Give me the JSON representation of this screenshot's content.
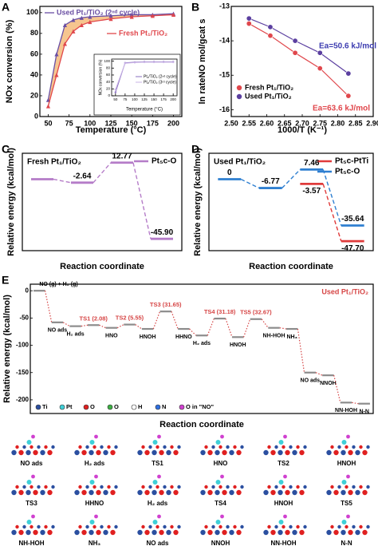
{
  "chart_data": [
    {
      "type": "line",
      "panel": "A",
      "xlabel": "Temperature (°C)",
      "ylabel": "NOx conversion (%)",
      "xlim": [
        40,
        210
      ],
      "xticks": [
        50,
        75,
        100,
        125,
        150,
        175,
        200
      ],
      "ylim": [
        0,
        106
      ],
      "yticks": [
        0,
        20,
        40,
        60,
        80,
        100
      ],
      "x": [
        50,
        60,
        70,
        80,
        90,
        100,
        125,
        150,
        175,
        200
      ],
      "fill_color": "#f6c58f",
      "series": [
        {
          "name": "Used Pt₁/TiO₂ (2ⁿᵈ cycle)",
          "color": "#6a4fa3",
          "values": [
            16,
            60,
            88,
            93,
            95,
            96,
            97,
            98,
            98,
            99
          ]
        },
        {
          "name": "Fresh Pt₁/TiO₂",
          "color": "#e0474c",
          "values": [
            10,
            40,
            70,
            82,
            88,
            91,
            94,
            96,
            97,
            98
          ]
        }
      ],
      "inset": {
        "xlabel": "Temperature (°C)",
        "ylabel": "NOx conversion (%)",
        "xlim": [
          40,
          210
        ],
        "xticks": [
          50,
          75,
          100,
          125,
          150,
          175,
          200
        ],
        "ylim": [
          0,
          106
        ],
        "yticks": [
          0,
          20,
          40,
          60,
          80,
          100
        ],
        "x": [
          50,
          75,
          100,
          125,
          150,
          175,
          200
        ],
        "series": [
          {
            "name": "Pt₁/TiO₂ (2ⁿᵈ cycle)",
            "color": "#8a6fc0",
            "values": [
              10,
              95,
              97,
              98,
              98,
              98,
              98
            ]
          },
          {
            "name": "Pt₁/TiO₂ (3ʳᵈ cycle)",
            "color": "#c9b3e6",
            "values": [
              18,
              94,
              96,
              97,
              97,
              97,
              97
            ]
          }
        ]
      }
    },
    {
      "type": "scatter",
      "panel": "B",
      "xlabel": "1000/T (K⁻¹)",
      "ylabel": "ln rateNO mol/gcat s",
      "xlim": [
        2.5,
        2.9
      ],
      "xticks": [
        {
          "value": 2.5,
          "label": "2.50"
        },
        {
          "value": 2.55,
          "label": "2.55"
        },
        {
          "value": 2.6,
          "label": "2.60"
        },
        {
          "value": 2.65,
          "label": "2.65"
        },
        {
          "value": 2.7,
          "label": "2.70"
        },
        {
          "value": 2.75,
          "label": "2.75"
        },
        {
          "value": 2.8,
          "label": "2.80"
        },
        {
          "value": 2.85,
          "label": "2.85"
        },
        {
          "value": 2.9,
          "label": "2.90"
        }
      ],
      "ylim": [
        -16.2,
        -13.0
      ],
      "yticks": [
        -16,
        -15,
        -14,
        -13
      ],
      "series": [
        {
          "name": "Fresh Pt₁/TiO₂",
          "color": "#e0474c",
          "x": [
            2.55,
            2.61,
            2.68,
            2.75,
            2.83
          ],
          "values": [
            -13.5,
            -13.85,
            -14.35,
            -14.8,
            -15.6
          ]
        },
        {
          "name": "Used Pt₁/TiO₂",
          "color": "#5b3fa0",
          "x": [
            2.55,
            2.61,
            2.68,
            2.75,
            2.83
          ],
          "values": [
            -13.35,
            -13.6,
            -14.0,
            -14.35,
            -14.95
          ]
        }
      ],
      "annotations": [
        {
          "text": "Ea=50.6 kJ/mol",
          "color": "#3c3cb0"
        },
        {
          "text": "Ea=63.6 kJ/mol",
          "color": "#e0474c"
        }
      ]
    },
    {
      "type": "energy",
      "panel": "C",
      "title": "Fresh Pt₁/TiO₂",
      "xlabel": "Reaction coordinate",
      "ylabel": "Relative energy (kcal/mol)",
      "ylim": [
        -55,
        20
      ],
      "series": [
        {
          "name": "Pt₅c-O",
          "color": "#b57cc8",
          "values": [
            0,
            -2.64,
            12.77,
            -45.9
          ],
          "value_labels": [
            null,
            "-2.64",
            "12.77",
            "-45.90"
          ]
        }
      ]
    },
    {
      "type": "energy",
      "panel": "D",
      "title": "Used Pt₁/TiO₂",
      "xlabel": "Reaction coordinate",
      "ylabel": "Relative energy (kcal/mol)",
      "ylim": [
        -55,
        20
      ],
      "series": [
        {
          "name": "Pt₅c-PtTi",
          "color": "#e03b3b",
          "values": [
            null,
            null,
            -3.57,
            -47.7
          ],
          "value_labels": [
            null,
            null,
            "-3.57",
            "-47.70"
          ]
        },
        {
          "name": "Pt₅c-O",
          "color": "#2e7fd1",
          "values": [
            0,
            -6.77,
            7.46,
            -35.64
          ],
          "value_labels": [
            "0",
            "-6.77",
            "7.46",
            "-35.64"
          ]
        }
      ]
    },
    {
      "type": "energy",
      "panel": "E",
      "title": "Used Pt₁/TiO₂",
      "xlabel": "Reaction coordinate",
      "ylabel": "Relative energy (kcal/mol)",
      "ylim": [
        -225,
        12
      ],
      "yticks": [
        -200,
        -150,
        -100,
        -50,
        0
      ],
      "series": [
        {
          "color": "#d64545",
          "level_color": "#8c8c8c",
          "values": [
            0,
            -58,
            -65,
            -63,
            -68,
            -62,
            -70,
            -38,
            -70,
            -82,
            -51,
            -85,
            -52,
            -68,
            -70,
            -150,
            -155,
            -205,
            -207
          ]
        }
      ],
      "categories": [
        "NO (g) + H₂ (g)",
        "NO ads",
        "H₂ ads",
        null,
        "HNO",
        null,
        "HNOH",
        null,
        "HHNO",
        "H₂ ads",
        null,
        "HNOH",
        null,
        "NH-HOH",
        "NH₃",
        "NO ads",
        "NNOH",
        "NN-HOH",
        "N-N"
      ],
      "annotations": [
        {
          "text": "TS1 (2.08)",
          "x": 3
        },
        {
          "text": "TS2 (5.55)",
          "x": 5
        },
        {
          "text": "TS3 (31.65)",
          "x": 7
        },
        {
          "text": "TS4 (31.18)",
          "x": 10
        },
        {
          "text": "TS5 (32.67)",
          "x": 12
        }
      ],
      "atoms": [
        {
          "label": "Ti",
          "color": "#2b4fa0"
        },
        {
          "label": "Pt",
          "color": "#3fd0d8"
        },
        {
          "label": "O",
          "color": "#e02020"
        },
        {
          "label": "O",
          "color": "#3cb043"
        },
        {
          "label": "H",
          "color": "#ffffff"
        },
        {
          "label": "N",
          "color": "#2f6fe0"
        },
        {
          "label": "O in \"NO\"",
          "color": "#d040d0"
        }
      ]
    }
  ],
  "structures": [
    "NO ads",
    "H₂ ads",
    "TS1",
    "HNO",
    "TS2",
    "HNOH",
    "TS3",
    "HHNO",
    "H₂ ads",
    "TS4",
    "HNOH",
    "TS5",
    "NH-HOH",
    "NH₃",
    "NO ads",
    "NNOH",
    "NN-HOH",
    "N-N"
  ]
}
